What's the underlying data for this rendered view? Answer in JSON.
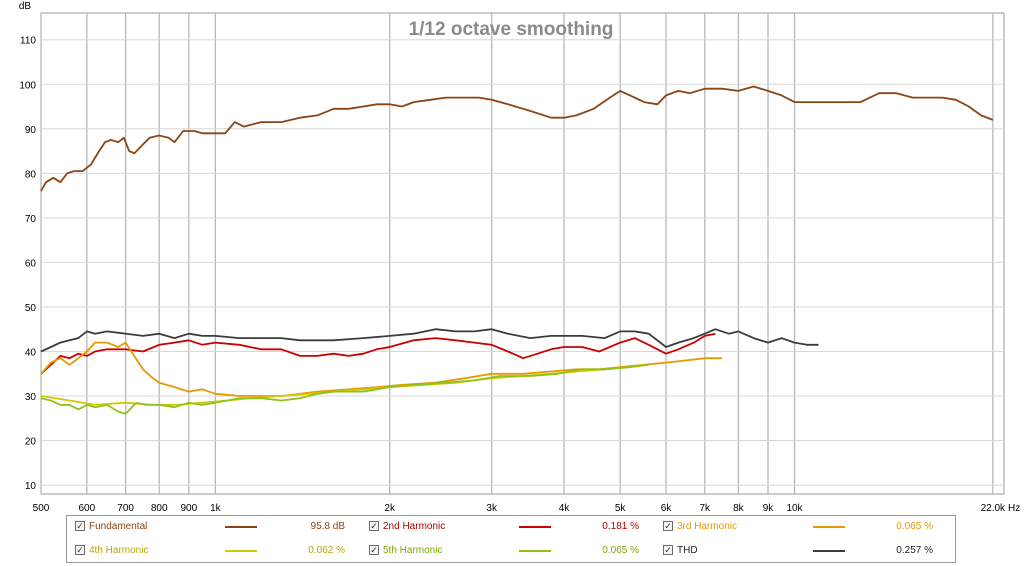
{
  "chart_data": {
    "type": "line",
    "title": "1/12 octave smoothing",
    "ylabel": "dB",
    "xunit": "Hz",
    "xscale": "log",
    "xlim": [
      500,
      23000
    ],
    "ylim": [
      8,
      116
    ],
    "grid": true,
    "yticks": [
      10,
      20,
      30,
      40,
      50,
      60,
      70,
      80,
      90,
      100,
      110
    ],
    "xticks": [
      {
        "v": 500,
        "label": "500"
      },
      {
        "v": 600,
        "label": "600"
      },
      {
        "v": 700,
        "label": "700"
      },
      {
        "v": 800,
        "label": "800"
      },
      {
        "v": 900,
        "label": "900"
      },
      {
        "v": 1000,
        "label": "1k"
      },
      {
        "v": 2000,
        "label": "2k"
      },
      {
        "v": 3000,
        "label": "3k"
      },
      {
        "v": 4000,
        "label": "4k"
      },
      {
        "v": 5000,
        "label": "5k"
      },
      {
        "v": 6000,
        "label": "6k"
      },
      {
        "v": 7000,
        "label": "7k"
      },
      {
        "v": 8000,
        "label": "8k"
      },
      {
        "v": 9000,
        "label": "9k"
      },
      {
        "v": 10000,
        "label": "10k"
      },
      {
        "v": 22000,
        "label": "22.0k"
      }
    ],
    "series": [
      {
        "name": "Fundamental",
        "value": "95.8 dB",
        "color": "#8b4513",
        "points": [
          [
            500,
            76
          ],
          [
            510,
            78
          ],
          [
            525,
            79
          ],
          [
            540,
            78
          ],
          [
            555,
            80
          ],
          [
            570,
            80.5
          ],
          [
            590,
            80.5
          ],
          [
            610,
            82
          ],
          [
            630,
            85
          ],
          [
            645,
            87
          ],
          [
            660,
            87.5
          ],
          [
            680,
            87
          ],
          [
            695,
            88
          ],
          [
            710,
            85
          ],
          [
            725,
            84.5
          ],
          [
            750,
            86.5
          ],
          [
            770,
            88
          ],
          [
            800,
            88.5
          ],
          [
            830,
            88
          ],
          [
            850,
            87
          ],
          [
            880,
            89.5
          ],
          [
            920,
            89.5
          ],
          [
            950,
            89
          ],
          [
            1000,
            89
          ],
          [
            1040,
            89
          ],
          [
            1080,
            91.5
          ],
          [
            1120,
            90.5
          ],
          [
            1200,
            91.5
          ],
          [
            1300,
            91.5
          ],
          [
            1400,
            92.5
          ],
          [
            1500,
            93
          ],
          [
            1600,
            94.5
          ],
          [
            1700,
            94.5
          ],
          [
            1800,
            95
          ],
          [
            1900,
            95.5
          ],
          [
            2000,
            95.5
          ],
          [
            2100,
            95
          ],
          [
            2200,
            96
          ],
          [
            2350,
            96.5
          ],
          [
            2500,
            97
          ],
          [
            2700,
            97
          ],
          [
            2850,
            97
          ],
          [
            3000,
            96.5
          ],
          [
            3200,
            95.5
          ],
          [
            3500,
            94
          ],
          [
            3800,
            92.5
          ],
          [
            4000,
            92.5
          ],
          [
            4200,
            93
          ],
          [
            4500,
            94.5
          ],
          [
            4800,
            97
          ],
          [
            5000,
            98.5
          ],
          [
            5200,
            97.5
          ],
          [
            5500,
            96
          ],
          [
            5800,
            95.5
          ],
          [
            6000,
            97.5
          ],
          [
            6300,
            98.5
          ],
          [
            6600,
            98
          ],
          [
            7000,
            99
          ],
          [
            7500,
            99
          ],
          [
            8000,
            98.5
          ],
          [
            8500,
            99.5
          ],
          [
            9000,
            98.5
          ],
          [
            9500,
            97.5
          ],
          [
            10000,
            96
          ],
          [
            11000,
            96
          ],
          [
            12000,
            96
          ],
          [
            13000,
            96
          ],
          [
            14000,
            98
          ],
          [
            15000,
            98
          ],
          [
            16000,
            97
          ],
          [
            17000,
            97
          ],
          [
            18000,
            97
          ],
          [
            19000,
            96.5
          ],
          [
            20000,
            95
          ],
          [
            21000,
            93
          ],
          [
            22000,
            92
          ]
        ]
      },
      {
        "name": "2nd Harmonic",
        "value": "0.181 %",
        "color": "#cc0000",
        "points": [
          [
            500,
            35
          ],
          [
            520,
            37
          ],
          [
            540,
            39
          ],
          [
            560,
            38.5
          ],
          [
            580,
            39.5
          ],
          [
            600,
            39
          ],
          [
            620,
            40
          ],
          [
            650,
            40.5
          ],
          [
            700,
            40.5
          ],
          [
            750,
            40
          ],
          [
            800,
            41.5
          ],
          [
            850,
            42
          ],
          [
            900,
            42.5
          ],
          [
            950,
            41.5
          ],
          [
            1000,
            42
          ],
          [
            1100,
            41.5
          ],
          [
            1200,
            40.5
          ],
          [
            1300,
            40.5
          ],
          [
            1400,
            39
          ],
          [
            1500,
            39
          ],
          [
            1600,
            39.5
          ],
          [
            1700,
            39
          ],
          [
            1800,
            39.5
          ],
          [
            1900,
            40.5
          ],
          [
            2000,
            41
          ],
          [
            2200,
            42.5
          ],
          [
            2400,
            43
          ],
          [
            2600,
            42.5
          ],
          [
            2800,
            42
          ],
          [
            3000,
            41.5
          ],
          [
            3200,
            40
          ],
          [
            3400,
            38.5
          ],
          [
            3600,
            39.5
          ],
          [
            3800,
            40.5
          ],
          [
            4000,
            41
          ],
          [
            4300,
            41
          ],
          [
            4600,
            40
          ],
          [
            5000,
            42
          ],
          [
            5300,
            43
          ],
          [
            5600,
            41.5
          ],
          [
            6000,
            39.5
          ],
          [
            6300,
            40.5
          ],
          [
            6700,
            42
          ],
          [
            7000,
            43.5
          ],
          [
            7300,
            44
          ]
        ]
      },
      {
        "name": "3rd Harmonic",
        "value": "0.065 %",
        "color": "#e69a00",
        "points": [
          [
            500,
            35
          ],
          [
            520,
            37.5
          ],
          [
            540,
            38.5
          ],
          [
            560,
            37
          ],
          [
            580,
            38.5
          ],
          [
            600,
            40
          ],
          [
            620,
            42
          ],
          [
            650,
            42
          ],
          [
            680,
            41
          ],
          [
            700,
            42
          ],
          [
            720,
            39.5
          ],
          [
            750,
            36
          ],
          [
            780,
            34
          ],
          [
            800,
            33
          ],
          [
            850,
            32
          ],
          [
            900,
            31
          ],
          [
            950,
            31.5
          ],
          [
            1000,
            30.5
          ],
          [
            1100,
            30
          ],
          [
            1200,
            30
          ],
          [
            1300,
            30
          ],
          [
            1400,
            30.5
          ],
          [
            1500,
            31
          ],
          [
            1700,
            31.5
          ],
          [
            1900,
            32
          ],
          [
            2100,
            32.5
          ],
          [
            2400,
            33
          ],
          [
            2700,
            34
          ],
          [
            3000,
            35
          ],
          [
            3400,
            35
          ],
          [
            3800,
            35.5
          ],
          [
            4200,
            36
          ],
          [
            4600,
            36
          ],
          [
            5000,
            36.5
          ],
          [
            5500,
            37
          ],
          [
            6000,
            37.5
          ],
          [
            6500,
            38
          ],
          [
            7000,
            38.5
          ],
          [
            7500,
            38.5
          ]
        ]
      },
      {
        "name": "4th Harmonic",
        "value": "0.062 %",
        "color": "#d4c800",
        "points": [
          [
            500,
            30
          ],
          [
            560,
            29
          ],
          [
            620,
            28
          ],
          [
            700,
            28.5
          ],
          [
            780,
            28
          ],
          [
            860,
            28
          ],
          [
            950,
            28.5
          ],
          [
            1050,
            29
          ],
          [
            1150,
            29.5
          ],
          [
            1300,
            30
          ],
          [
            1450,
            30.5
          ],
          [
            1600,
            31
          ],
          [
            1800,
            31.5
          ],
          [
            2000,
            32
          ],
          [
            2300,
            32.5
          ],
          [
            2600,
            33
          ],
          [
            3000,
            34
          ],
          [
            3400,
            34.5
          ],
          [
            3800,
            35
          ],
          [
            4200,
            35.5
          ],
          [
            4700,
            36
          ],
          [
            5200,
            36.5
          ],
          [
            5500,
            37
          ]
        ]
      },
      {
        "name": "5th Harmonic",
        "value": "0.065 %",
        "color": "#8fc21a",
        "points": [
          [
            500,
            29.5
          ],
          [
            520,
            29
          ],
          [
            540,
            28
          ],
          [
            560,
            28
          ],
          [
            580,
            27
          ],
          [
            600,
            28
          ],
          [
            620,
            27.5
          ],
          [
            650,
            28
          ],
          [
            680,
            26.5
          ],
          [
            700,
            26
          ],
          [
            730,
            28.5
          ],
          [
            760,
            28
          ],
          [
            800,
            28
          ],
          [
            850,
            27.5
          ],
          [
            900,
            28.5
          ],
          [
            950,
            28
          ],
          [
            1000,
            28.5
          ],
          [
            1100,
            29.5
          ],
          [
            1200,
            29.5
          ],
          [
            1300,
            29
          ],
          [
            1400,
            29.5
          ],
          [
            1500,
            30.5
          ],
          [
            1600,
            31
          ],
          [
            1800,
            31
          ],
          [
            2000,
            32
          ],
          [
            2200,
            32.5
          ],
          [
            2500,
            33
          ],
          [
            2800,
            33.5
          ],
          [
            3100,
            34.5
          ],
          [
            3500,
            34.5
          ],
          [
            3900,
            35
          ],
          [
            4300,
            36
          ],
          [
            4700,
            36
          ],
          [
            5200,
            36.5
          ],
          [
            5600,
            37
          ]
        ]
      },
      {
        "name": "THD",
        "value": "0.257 %",
        "color": "#3c3c3c",
        "points": [
          [
            500,
            40
          ],
          [
            520,
            41
          ],
          [
            540,
            42
          ],
          [
            560,
            42.5
          ],
          [
            580,
            43
          ],
          [
            600,
            44.5
          ],
          [
            620,
            44
          ],
          [
            650,
            44.5
          ],
          [
            700,
            44
          ],
          [
            750,
            43.5
          ],
          [
            800,
            44
          ],
          [
            850,
            43
          ],
          [
            900,
            44
          ],
          [
            950,
            43.5
          ],
          [
            1000,
            43.5
          ],
          [
            1100,
            43
          ],
          [
            1200,
            43
          ],
          [
            1300,
            43
          ],
          [
            1400,
            42.5
          ],
          [
            1500,
            42.5
          ],
          [
            1600,
            42.5
          ],
          [
            1800,
            43
          ],
          [
            2000,
            43.5
          ],
          [
            2200,
            44
          ],
          [
            2400,
            45
          ],
          [
            2600,
            44.5
          ],
          [
            2800,
            44.5
          ],
          [
            3000,
            45
          ],
          [
            3200,
            44
          ],
          [
            3500,
            43
          ],
          [
            3800,
            43.5
          ],
          [
            4000,
            43.5
          ],
          [
            4300,
            43.5
          ],
          [
            4700,
            43
          ],
          [
            5000,
            44.5
          ],
          [
            5300,
            44.5
          ],
          [
            5600,
            44
          ],
          [
            6000,
            41
          ],
          [
            6300,
            42
          ],
          [
            6700,
            43
          ],
          [
            7000,
            44
          ],
          [
            7300,
            45
          ],
          [
            7700,
            44
          ],
          [
            8000,
            44.5
          ],
          [
            8500,
            43
          ],
          [
            9000,
            42
          ],
          [
            9500,
            43
          ],
          [
            10000,
            42
          ],
          [
            10500,
            41.5
          ],
          [
            11000,
            41.5
          ]
        ]
      }
    ]
  },
  "legend": [
    {
      "name": "Fundamental",
      "value": "95.8 dB",
      "text_color": "#8b4513",
      "line_color": "#8b4513",
      "checked": true
    },
    {
      "name": "2nd Harmonic",
      "value": "0.181 %",
      "text_color": "#aa0000",
      "line_color": "#cc0000",
      "checked": true
    },
    {
      "name": "3rd Harmonic",
      "value": "0.065 %",
      "text_color": "#e69a00",
      "line_color": "#e69a00",
      "checked": true
    },
    {
      "name": "4th Harmonic",
      "value": "0.062 %",
      "text_color": "#b5a800",
      "line_color": "#d4c800",
      "checked": true
    },
    {
      "name": "5th Harmonic",
      "value": "0.065 %",
      "text_color": "#7aa800",
      "line_color": "#8fc21a",
      "checked": true
    },
    {
      "name": "THD",
      "value": "0.257 %",
      "text_color": "#222222",
      "line_color": "#3c3c3c",
      "checked": true
    }
  ]
}
